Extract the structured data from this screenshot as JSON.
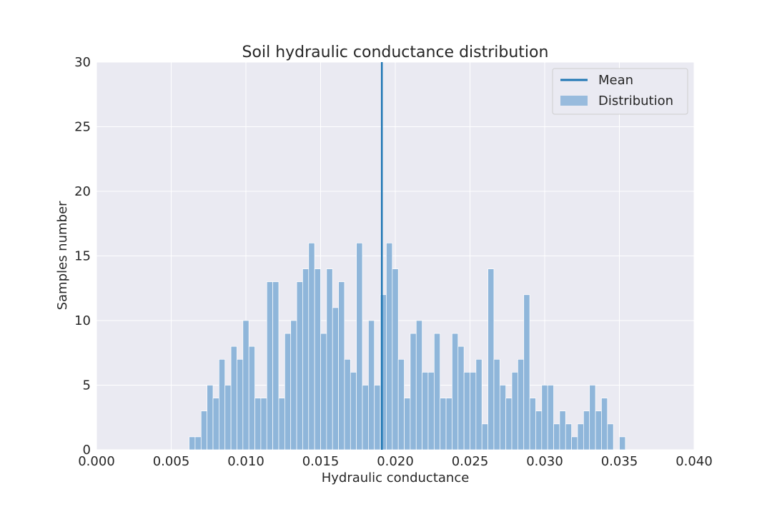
{
  "chart_data": {
    "type": "bar",
    "title": "Soil hydraulic conductance distribution",
    "xlabel": "Hydraulic conductance",
    "ylabel": "Samples number",
    "xlim": [
      0.0,
      0.04
    ],
    "ylim": [
      0,
      30
    ],
    "x_ticks": [
      "0.000",
      "0.005",
      "0.010",
      "0.015",
      "0.020",
      "0.025",
      "0.030",
      "0.035",
      "0.040"
    ],
    "y_ticks": [
      "0",
      "5",
      "10",
      "15",
      "20",
      "25",
      "30"
    ],
    "grid": true,
    "legend_position": "top-right",
    "legend": [
      "Mean",
      "Distribution"
    ],
    "mean": 0.0191,
    "bin_start": 0.0062,
    "bin_width": 0.0004,
    "series": [
      {
        "name": "Distribution",
        "color": "#8fb6da",
        "values": [
          1,
          1,
          3,
          5,
          4,
          7,
          5,
          8,
          7,
          10,
          8,
          4,
          4,
          13,
          13,
          4,
          9,
          10,
          13,
          14,
          16,
          14,
          9,
          14,
          11,
          13,
          7,
          6,
          16,
          5,
          10,
          5,
          12,
          16,
          14,
          7,
          4,
          9,
          10,
          6,
          6,
          9,
          4,
          4,
          9,
          8,
          6,
          6,
          7,
          2,
          14,
          7,
          5,
          4,
          6,
          7,
          12,
          4,
          3,
          5,
          5,
          2,
          3,
          2,
          1,
          2,
          3,
          5,
          3,
          4,
          2,
          0,
          1
        ]
      },
      {
        "name": "Mean",
        "color": "#1f77b4",
        "values": [
          0.0191
        ]
      }
    ]
  }
}
